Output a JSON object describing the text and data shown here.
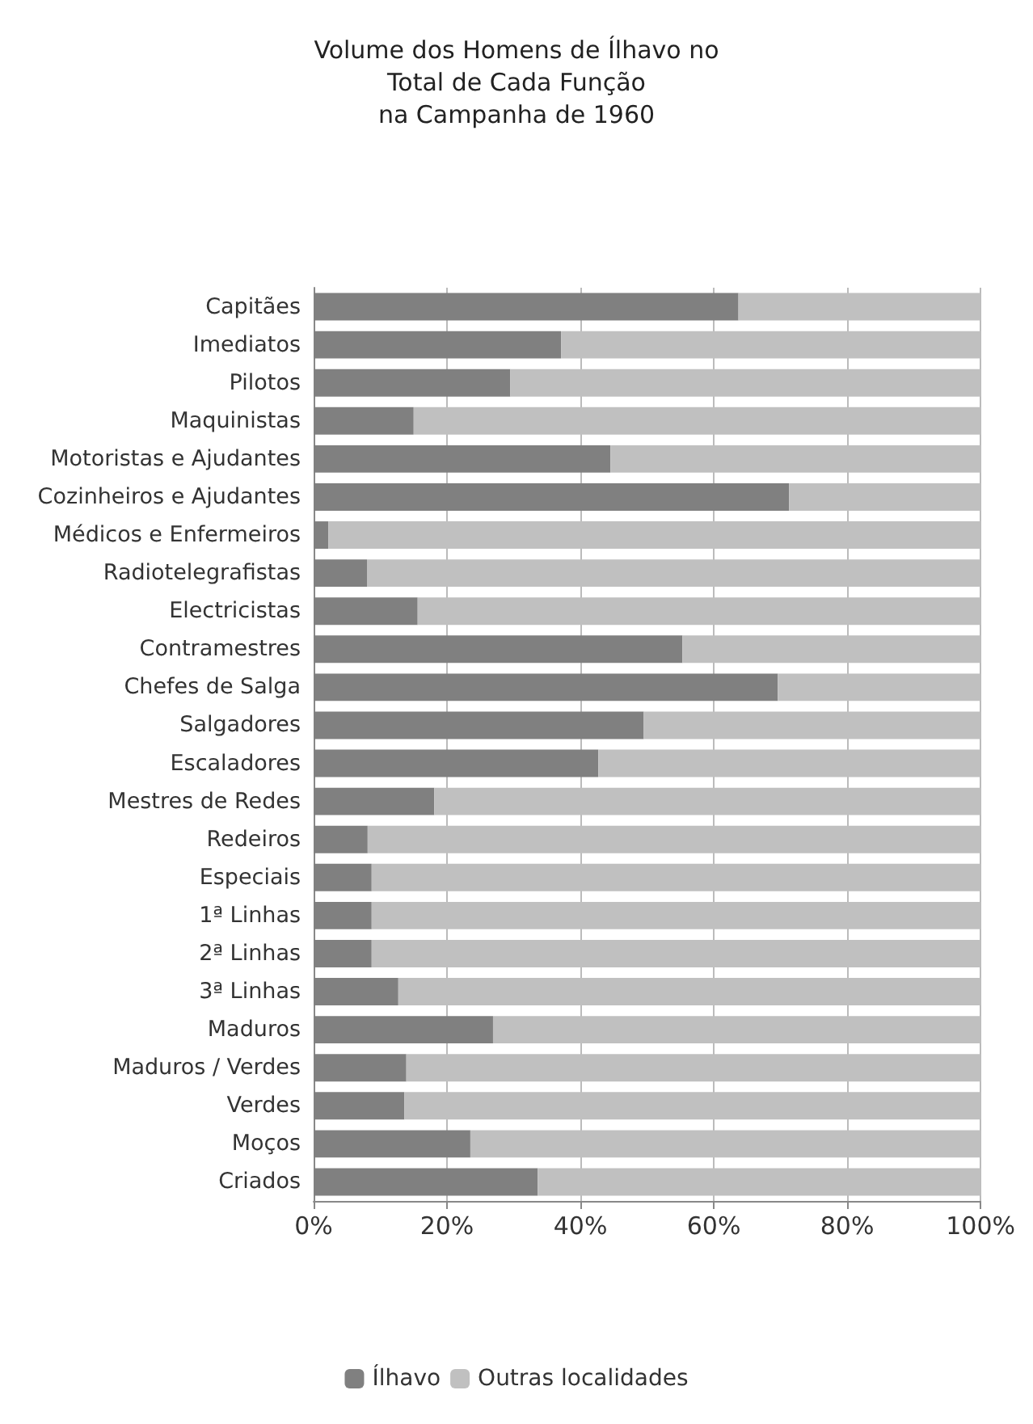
{
  "chart_data": {
    "type": "bar",
    "orientation": "horizontal",
    "stacked": true,
    "title": "Volume dos Homens de Ílhavo no\nTotal de Cada Função\nna Campanha de 1960",
    "categories": [
      "Capitães",
      "Imediatos",
      "Pilotos",
      "Maquinistas",
      "Motoristas e Ajudantes",
      "Cozinheiros e Ajudantes",
      "Médicos e Enfermeiros",
      "Radiotelegrafistas",
      "Electricistas",
      "Contramestres",
      "Chefes de Salga",
      "Salgadores",
      "Escaladores",
      "Mestres de Redes",
      "Redeiros",
      "Especiais",
      "1ª Linhas",
      "2ª Linhas",
      "3ª Linhas",
      "Maduros",
      "Maduros / Verdes",
      "Verdes",
      "Moços",
      "Criados"
    ],
    "series": [
      {
        "name": "Ílhavo",
        "color": "#808080",
        "values": [
          63.7,
          37.1,
          29.5,
          15.0,
          44.5,
          71.3,
          2.2,
          8.0,
          15.6,
          55.3,
          69.6,
          49.5,
          42.7,
          18.1,
          8.1,
          8.7,
          8.7,
          8.7,
          12.7,
          26.9,
          13.9,
          13.6,
          23.5,
          33.6
        ]
      },
      {
        "name": "Outras localidades",
        "color": "#c0c0c0",
        "values": [
          36.3,
          62.9,
          70.5,
          85.0,
          55.5,
          28.7,
          97.8,
          92.0,
          84.4,
          44.7,
          30.4,
          50.5,
          57.3,
          81.9,
          91.9,
          91.3,
          91.3,
          91.3,
          87.3,
          73.1,
          86.1,
          86.4,
          76.5,
          66.4
        ]
      }
    ],
    "xlim": [
      0,
      100
    ],
    "xticks": [
      {
        "value": 0,
        "label": "0%"
      },
      {
        "value": 20,
        "label": "20%"
      },
      {
        "value": 40,
        "label": "40%"
      },
      {
        "value": 60,
        "label": "60%"
      },
      {
        "value": 80,
        "label": "80%"
      },
      {
        "value": 100,
        "label": "100%"
      }
    ],
    "grid": "x",
    "legend": "bottom"
  }
}
